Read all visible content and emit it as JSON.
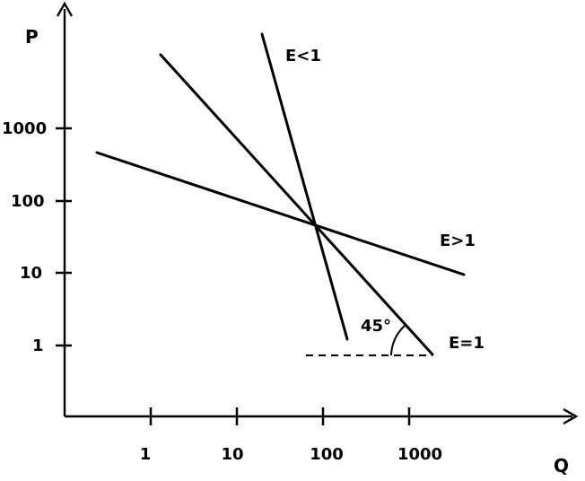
{
  "axes": {
    "y_label": "P",
    "x_label": "Q",
    "y_ticks": [
      "1000",
      "100",
      "10",
      "1"
    ],
    "x_ticks": [
      "1",
      "10",
      "100",
      "1000"
    ]
  },
  "curves": [
    {
      "label": "E<1"
    },
    {
      "label": "E>1"
    },
    {
      "label": "E=1"
    }
  ],
  "angle_label": "45°"
}
